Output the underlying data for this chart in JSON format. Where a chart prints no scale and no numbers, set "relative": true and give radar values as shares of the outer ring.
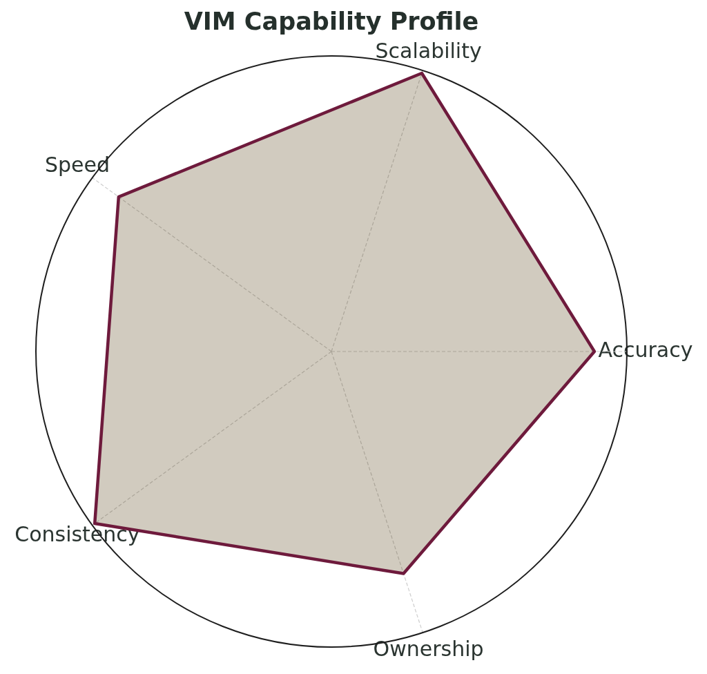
{
  "chart_data": {
    "type": "radar",
    "title": "VIM Capability Profile",
    "categories": [
      "Scalability",
      "Accuracy",
      "Ownership",
      "Consistency",
      "Speed"
    ],
    "relative": true,
    "series": [
      {
        "color": "#6e1a3c",
        "values": [
          0.99,
          0.89,
          0.79,
          0.99,
          0.89
        ]
      }
    ],
    "grid": true,
    "marker": "none"
  }
}
